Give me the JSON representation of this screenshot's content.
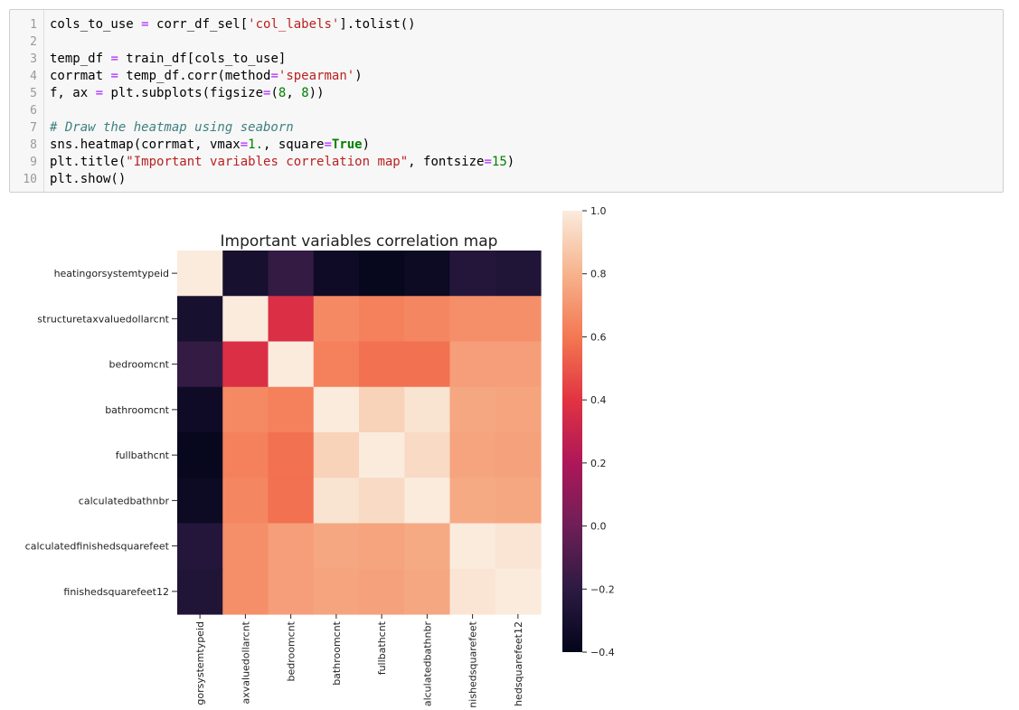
{
  "code_cell": {
    "lines": [
      {
        "n": "1",
        "tokens": [
          {
            "t": "cols_to_use "
          },
          {
            "t": "=",
            "c": "t-op"
          },
          {
            "t": " corr_df_sel["
          },
          {
            "t": "'col_labels'",
            "c": "t-str"
          },
          {
            "t": "].tolist()"
          }
        ]
      },
      {
        "n": "2",
        "tokens": []
      },
      {
        "n": "3",
        "tokens": [
          {
            "t": "temp_df "
          },
          {
            "t": "=",
            "c": "t-op"
          },
          {
            "t": " train_df[cols_to_use]"
          }
        ]
      },
      {
        "n": "4",
        "tokens": [
          {
            "t": "corrmat "
          },
          {
            "t": "=",
            "c": "t-op"
          },
          {
            "t": " temp_df.corr(method"
          },
          {
            "t": "=",
            "c": "t-op"
          },
          {
            "t": "'spearman'",
            "c": "t-str"
          },
          {
            "t": ")"
          }
        ]
      },
      {
        "n": "5",
        "tokens": [
          {
            "t": "f, ax "
          },
          {
            "t": "=",
            "c": "t-op"
          },
          {
            "t": " plt.subplots(figsize"
          },
          {
            "t": "=",
            "c": "t-op"
          },
          {
            "t": "("
          },
          {
            "t": "8",
            "c": "t-num"
          },
          {
            "t": ", "
          },
          {
            "t": "8",
            "c": "t-num"
          },
          {
            "t": "))"
          }
        ]
      },
      {
        "n": "6",
        "tokens": []
      },
      {
        "n": "7",
        "tokens": [
          {
            "t": "# Draw the heatmap using seaborn",
            "c": "t-com"
          }
        ]
      },
      {
        "n": "8",
        "tokens": [
          {
            "t": "sns.heatmap(corrmat, vmax"
          },
          {
            "t": "=",
            "c": "t-op"
          },
          {
            "t": "1.",
            "c": "t-num"
          },
          {
            "t": ", square"
          },
          {
            "t": "=",
            "c": "t-op"
          },
          {
            "t": "True",
            "c": "t-kw"
          },
          {
            "t": ")"
          }
        ]
      },
      {
        "n": "9",
        "tokens": [
          {
            "t": "plt.title("
          },
          {
            "t": "\"Important variables correlation map\"",
            "c": "t-str"
          },
          {
            "t": ", fontsize"
          },
          {
            "t": "=",
            "c": "t-op"
          },
          {
            "t": "15",
            "c": "t-num"
          },
          {
            "t": ")"
          }
        ]
      },
      {
        "n": "10",
        "tokens": [
          {
            "t": "plt.show()"
          }
        ]
      }
    ]
  },
  "chart_data": {
    "type": "heatmap",
    "title": "Important variables correlation map",
    "row_labels": [
      "heatingorsystemtypeid",
      "structuretaxvaluedollarcnt",
      "bedroomcnt",
      "bathroomcnt",
      "fullbathcnt",
      "calculatedbathnbr",
      "calculatedfinishedsquarefeet",
      "finishedsquarefeet12"
    ],
    "col_tick_labels": [
      "gorsystemtypeid",
      "axvaluedollarcnt",
      "bedroomcnt",
      "bathroomcnt",
      "fullbathcnt",
      "alculatedbathnbr",
      "nishedsquarefeet",
      "hedsquarefeet12"
    ],
    "values": [
      [
        1.0,
        -0.3,
        -0.18,
        -0.34,
        -0.38,
        -0.35,
        -0.24,
        -0.26
      ],
      [
        -0.3,
        1.0,
        0.37,
        0.66,
        0.63,
        0.65,
        0.68,
        0.68
      ],
      [
        -0.18,
        0.37,
        1.0,
        0.63,
        0.58,
        0.58,
        0.73,
        0.73
      ],
      [
        -0.34,
        0.66,
        0.63,
        1.0,
        0.91,
        0.97,
        0.76,
        0.75
      ],
      [
        -0.38,
        0.63,
        0.58,
        0.91,
        1.0,
        0.94,
        0.75,
        0.74
      ],
      [
        -0.35,
        0.65,
        0.58,
        0.97,
        0.94,
        1.0,
        0.77,
        0.76
      ],
      [
        -0.24,
        0.68,
        0.73,
        0.76,
        0.75,
        0.77,
        1.0,
        0.98
      ],
      [
        -0.26,
        0.68,
        0.73,
        0.75,
        0.74,
        0.76,
        0.98,
        1.0
      ]
    ],
    "vmin": -0.4,
    "vmax": 1.0,
    "colormap": "rocket",
    "colorbar_ticks": [
      1.0,
      0.8,
      0.6,
      0.4,
      0.2,
      0.0,
      -0.2,
      -0.4
    ],
    "colorbar_tick_labels": [
      "1.0",
      "0.8",
      "0.6",
      "0.4",
      "0.2",
      "0.0",
      "−0.2",
      "−0.4"
    ]
  }
}
